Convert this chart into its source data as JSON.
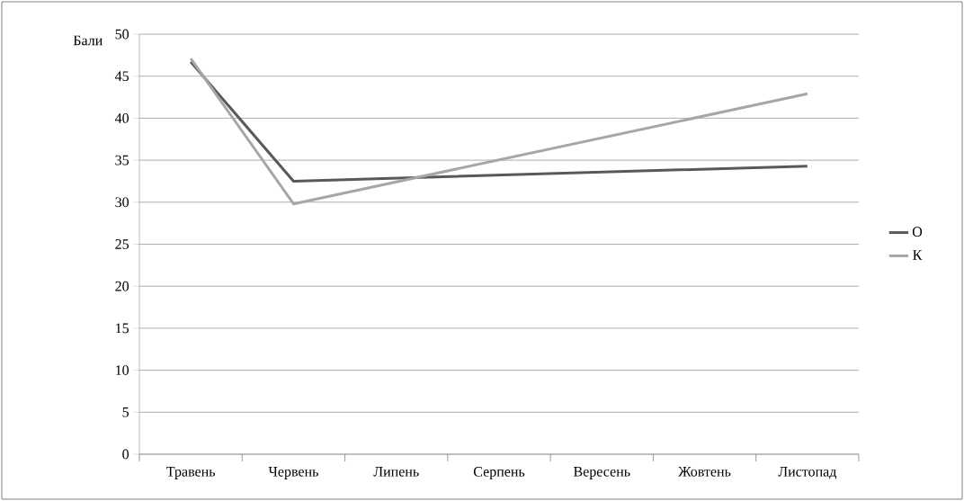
{
  "chart_data": {
    "type": "line",
    "ylabel": "Бали",
    "categories": [
      "Травень",
      "Червень",
      "Липень",
      "Серпень",
      "Вересень",
      "Жовтень",
      "Листопад"
    ],
    "series": [
      {
        "name": "О",
        "color": "#595959",
        "values": [
          46.7,
          32.5,
          null,
          null,
          null,
          null,
          34.3
        ]
      },
      {
        "name": "К",
        "color": "#a6a6a6",
        "values": [
          47.1,
          29.8,
          null,
          null,
          null,
          null,
          42.9
        ]
      }
    ],
    "ylim": [
      0,
      50
    ],
    "yticks": [
      0,
      5,
      10,
      15,
      20,
      25,
      30,
      35,
      40,
      45,
      50
    ],
    "grid": "y",
    "legend": "right"
  }
}
